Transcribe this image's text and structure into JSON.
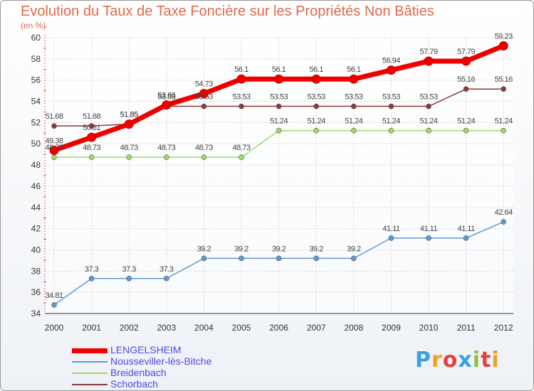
{
  "chart_data": {
    "type": "line",
    "title": "Evolution du Taux de Taxe Foncière sur les Propriétés Non Bâties",
    "ylabel": "(en %)",
    "xlabel": "",
    "categories": [
      "2000",
      "2001",
      "2002",
      "2003",
      "2004",
      "2005",
      "2006",
      "2007",
      "2008",
      "2009",
      "2010",
      "2011",
      "2012"
    ],
    "ylim": [
      34,
      60
    ],
    "yticks": [
      "34",
      "36",
      "38",
      "40",
      "42",
      "44",
      "46",
      "48",
      "50",
      "52",
      "54",
      "56",
      "58",
      "60"
    ],
    "series": [
      {
        "name": "LENGELSHEIM",
        "color": "#ee0000",
        "values": [
          49.38,
          50.61,
          51.85,
          53.66,
          54.73,
          56.1,
          56.1,
          56.1,
          56.1,
          56.94,
          57.79,
          57.79,
          59.23
        ],
        "labels": [
          "49.38",
          "50.61",
          "51.85",
          "53.66",
          "54.73",
          "56.1",
          "56.1",
          "56.1",
          "56.1",
          "56.94",
          "57.79",
          "57.79",
          "59.23"
        ]
      },
      {
        "name": "Nousseviller-lès-Bitche",
        "color": "#5b9bd5",
        "values": [
          34.81,
          37.3,
          37.3,
          37.3,
          39.2,
          39.2,
          39.2,
          39.2,
          39.2,
          41.11,
          41.11,
          41.11,
          42.64
        ],
        "labels": [
          "34.81",
          "37.3",
          "37.3",
          "37.3",
          "39.2",
          "39.2",
          "39.2",
          "39.2",
          "39.2",
          "41.11",
          "41.11",
          "41.11",
          "42.64"
        ]
      },
      {
        "name": "Breidenbach",
        "color": "#99dd66",
        "values": [
          48.73,
          48.73,
          48.73,
          48.73,
          48.73,
          48.73,
          51.24,
          51.24,
          51.24,
          51.24,
          51.24,
          51.24,
          51.24
        ],
        "labels": [
          "48.73",
          "48.73",
          "48.73",
          "48.73",
          "48.73",
          "48.73",
          "51.24",
          "51.24",
          "51.24",
          "51.24",
          "51.24",
          "51.24",
          "51.24"
        ]
      },
      {
        "name": "Schorbach",
        "color": "#8b3a3a",
        "values": [
          51.68,
          51.68,
          51.85,
          53.53,
          53.53,
          53.53,
          53.53,
          53.53,
          53.53,
          53.53,
          53.53,
          55.16,
          55.16
        ],
        "labels": [
          "51.68",
          "51.68",
          "51.85",
          "53.53",
          "53.53",
          "53.53",
          "53.53",
          "53.53",
          "53.53",
          "53.53",
          "53.53",
          "55.16",
          "55.16"
        ]
      }
    ]
  },
  "logo": {
    "letters": [
      "P",
      "r",
      "o",
      "x",
      "i",
      "t",
      "i"
    ],
    "colors": [
      "#3aa0e0",
      "#f0a020",
      "#e84040",
      "#3aa0e0",
      "#90c040",
      "#e84040",
      "#f0a020"
    ]
  }
}
